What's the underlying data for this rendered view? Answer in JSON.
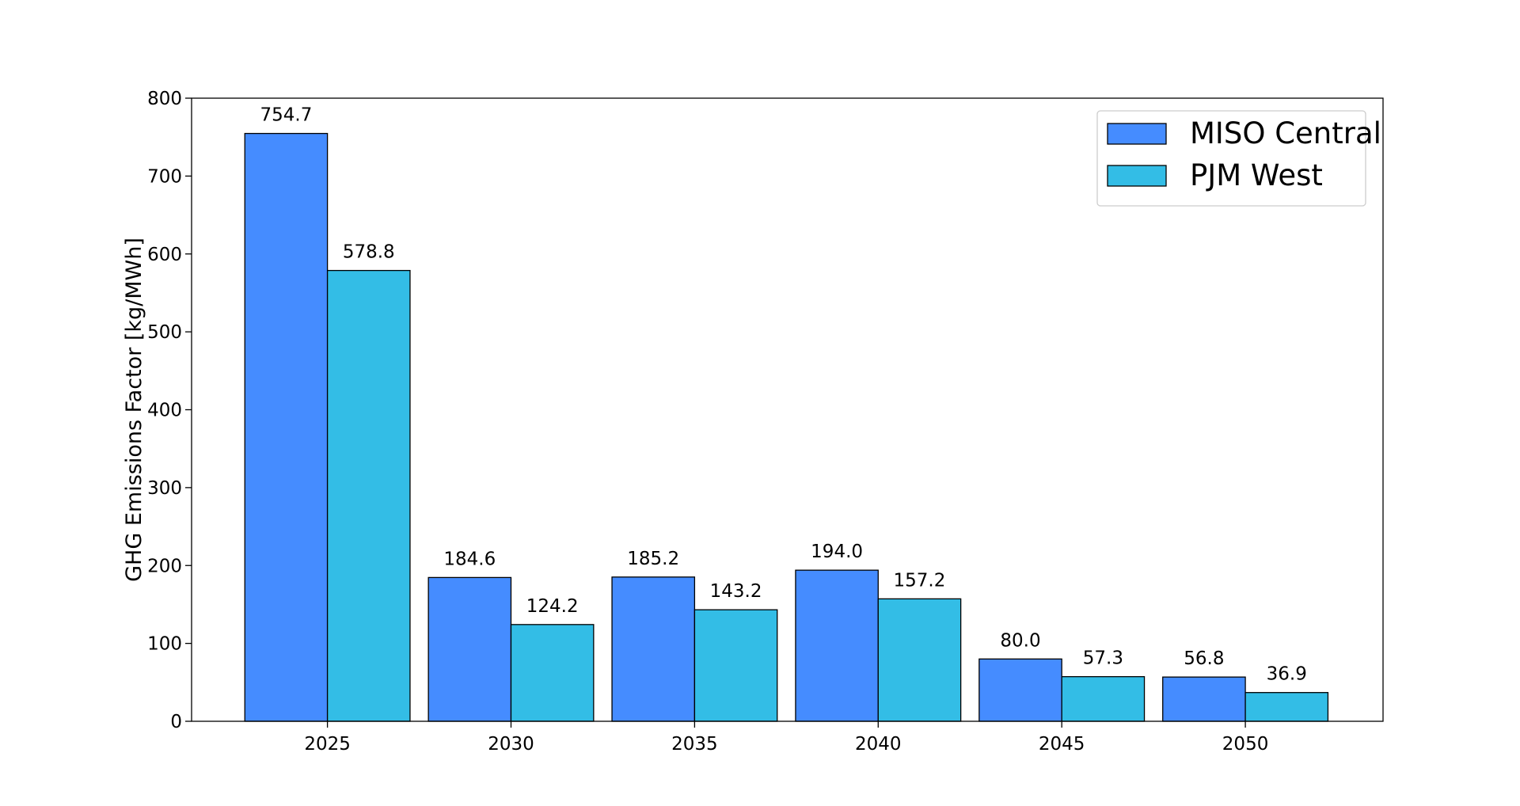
{
  "chart_data": {
    "type": "bar",
    "title": "",
    "xlabel": "",
    "ylabel": "GHG Emissions Factor [kg/MWh]",
    "categories": [
      "2025",
      "2030",
      "2035",
      "2040",
      "2045",
      "2050"
    ],
    "ylim": [
      0,
      800
    ],
    "yticks": [
      0,
      100,
      200,
      300,
      400,
      500,
      600,
      700,
      800
    ],
    "series": [
      {
        "name": "MISO Central",
        "color": "#458cff",
        "values": [
          754.7,
          184.6,
          185.2,
          194.0,
          80.0,
          56.8
        ],
        "value_labels": [
          "754.7",
          "184.6",
          "185.2",
          "194.0",
          "80.0",
          "56.8"
        ]
      },
      {
        "name": "PJM West",
        "color": "#33bde6",
        "values": [
          578.8,
          124.2,
          143.2,
          157.2,
          57.3,
          36.9
        ],
        "value_labels": [
          "578.8",
          "124.2",
          "143.2",
          "157.2",
          "57.3",
          "36.9"
        ]
      }
    ],
    "grid": false,
    "legend_position": "top-right"
  }
}
